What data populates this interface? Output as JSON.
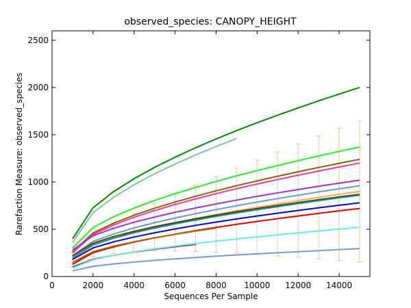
{
  "chart_data": {
    "type": "line",
    "title": "observed_species: CANOPY_HEIGHT",
    "xlabel": "Sequences Per Sample",
    "ylabel": "Rarefaction Measure: observed_species",
    "x": [
      1000,
      2000,
      3000,
      4000,
      5000,
      6000,
      7000,
      8000,
      9000,
      10000,
      11000,
      12000,
      13000,
      14000,
      15000
    ],
    "xlim": [
      0,
      15500
    ],
    "ylim": [
      0,
      2600
    ],
    "xticks": [
      0,
      2000,
      4000,
      6000,
      8000,
      10000,
      12000,
      14000
    ],
    "yticks": [
      0,
      500,
      1000,
      1500,
      2000,
      2500
    ],
    "series": [
      {
        "color": "#ffaa55",
        "values": [
          180,
          328,
          404,
          466,
          520,
          568,
          613,
          655,
          695,
          732,
          768,
          803,
          837,
          869,
          900
        ],
        "errors": [
          80,
          120,
          160,
          200,
          250,
          300,
          350,
          400,
          450,
          500,
          550,
          600,
          650,
          700,
          750
        ]
      },
      {
        "color": "#008800",
        "values": [
          400,
          728,
          898,
          1035,
          1155,
          1262,
          1362,
          1456,
          1544,
          1627,
          1707,
          1784,
          1859,
          1931,
          2000
        ]
      },
      {
        "color": "#77c8a0",
        "values": [
          360,
          676,
          839,
          971,
          1087,
          1190,
          1286,
          1376,
          1461,
          null,
          null,
          null,
          null,
          null,
          null
        ]
      },
      {
        "color": "#22ee22",
        "values": [
          300,
          519,
          633,
          725,
          805,
          877,
          943,
          1006,
          1065,
          1121,
          1174,
          1226,
          1276,
          1324,
          1370
        ]
      },
      {
        "color": "#806000",
        "values": [
          260,
          461,
          565,
          649,
          723,
          788,
          849,
          907,
          961,
          1012,
          1061,
          1108,
          1154,
          1198,
          1240
        ]
      },
      {
        "color": "#ff3399",
        "values": [
          250,
          445,
          545,
          627,
          698,
          762,
          821,
          877,
          929,
          979,
          1026,
          1072,
          1116,
          1159,
          1200
        ]
      },
      {
        "color": "#9933cc",
        "values": [
          280,
          432,
          510,
          574,
          629,
          679,
          725,
          768,
          809,
          848,
          885,
          920,
          955,
          988,
          1020
        ]
      },
      {
        "color": "#6699cc",
        "values": [
          220,
          372,
          450,
          514,
          569,
          619,
          665,
          708,
          749,
          788,
          825,
          860,
          895,
          928,
          960
        ]
      },
      {
        "color": "#663300",
        "values": [
          220,
          353,
          422,
          478,
          527,
          570,
          611,
          649,
          685,
          719,
          751,
          782,
          813,
          842,
          870
        ]
      },
      {
        "color": "#009999",
        "values": [
          200,
          335,
          405,
          462,
          512,
          556,
          597,
          636,
          672,
          706,
          739,
          771,
          802,
          832,
          860
        ]
      },
      {
        "color": "#0000cc",
        "values": [
          180,
          303,
          367,
          418,
          463,
          503,
          541,
          576,
          609,
          640,
          670,
          699,
          727,
          754,
          780
        ]
      },
      {
        "color": "#dd0000",
        "values": [
          130,
          251,
          313,
          364,
          408,
          448,
          485,
          519,
          552,
          583,
          612,
          640,
          668,
          695,
          720
        ]
      },
      {
        "color": "#aa6600",
        "values": [
          150,
          263,
          321,
          368,
          410,
          446,
          481,
          513,
          null,
          null,
          null,
          null,
          null,
          null,
          null
        ]
      },
      {
        "color": "#990033",
        "values": [
          100,
          182,
          224,
          259,
          289,
          316,
          340,
          null,
          null,
          null,
          null,
          null,
          null,
          null,
          null
        ]
      },
      {
        "color": "#66eedd",
        "values": [
          90,
          178,
          224,
          261,
          293,
          322,
          348,
          374,
          397,
          420,
          441,
          462,
          482,
          502,
          520
        ]
      },
      {
        "color": "#7799cc",
        "values": [
          60,
          108,
          133,
          153,
          171,
          187,
          201,
          215,
          228,
          240,
          252,
          263,
          274,
          285,
          295
        ]
      }
    ]
  }
}
